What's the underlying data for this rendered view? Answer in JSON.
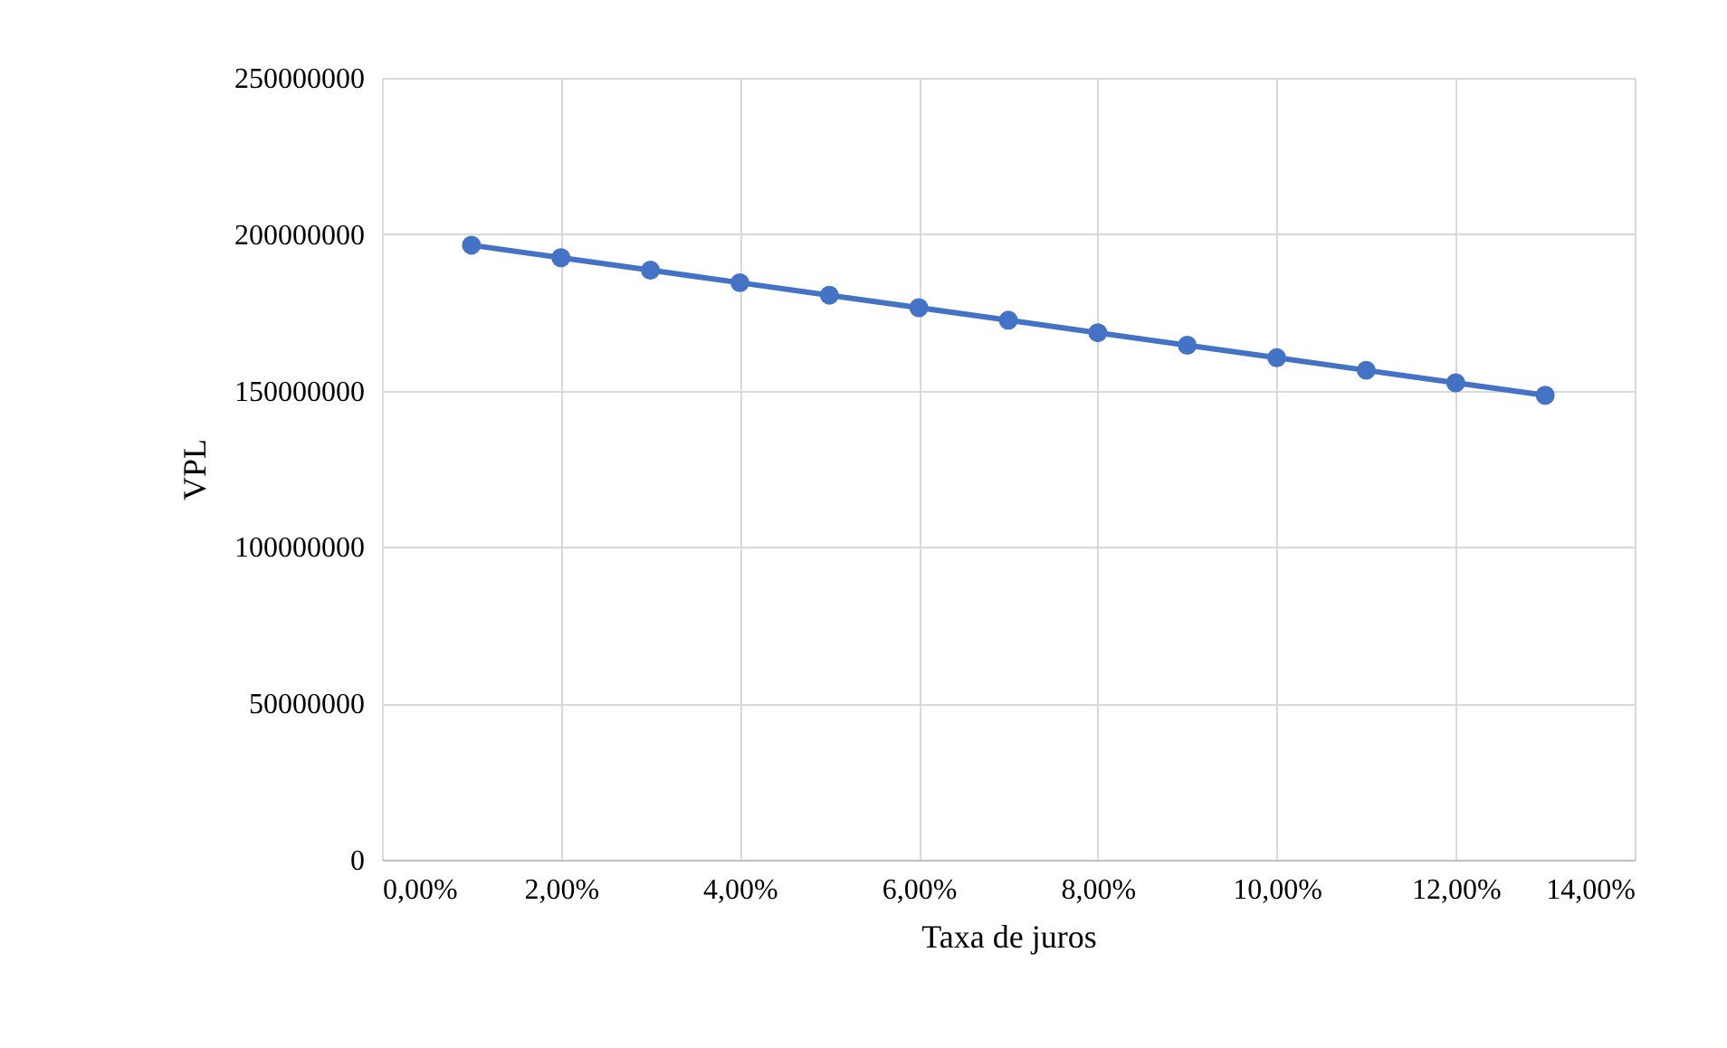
{
  "chart_data": {
    "type": "line",
    "xlabel": "Taxa de juros",
    "ylabel": "VPL",
    "x": [
      1,
      2,
      3,
      4,
      5,
      6,
      7,
      8,
      9,
      10,
      11,
      12,
      13
    ],
    "series": [
      {
        "color": "#4472c4",
        "values": [
          196500000,
          192500000,
          188500000,
          184500000,
          180500000,
          176500000,
          172500000,
          168500000,
          164500000,
          160500000,
          156500000,
          152500000,
          148500000
        ]
      }
    ],
    "xlim": [
      0,
      14
    ],
    "xticks": [
      {
        "value": 0,
        "label": "0,00%"
      },
      {
        "value": 2,
        "label": "2,00%"
      },
      {
        "value": 4,
        "label": "4,00%"
      },
      {
        "value": 6,
        "label": "6,00%"
      },
      {
        "value": 8,
        "label": "8,00%"
      },
      {
        "value": 10,
        "label": "10,00%"
      },
      {
        "value": 12,
        "label": "12,00%"
      },
      {
        "value": 14,
        "label": "14,00%"
      }
    ],
    "ylim": [
      0,
      250000000
    ],
    "yticks": [
      0,
      50000000,
      100000000,
      150000000,
      200000000,
      250000000
    ],
    "grid": true,
    "marker": "circle",
    "line_style": "solid"
  }
}
